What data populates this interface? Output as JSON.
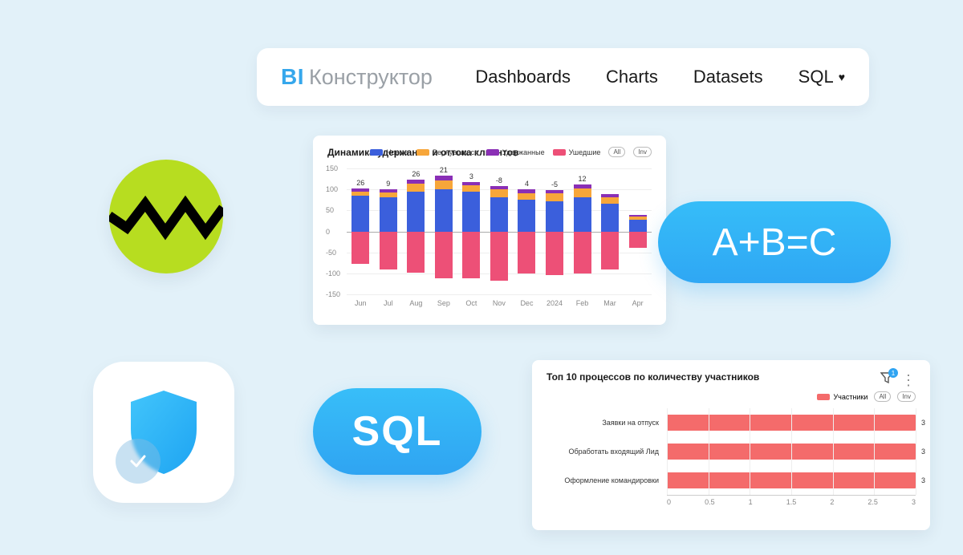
{
  "palette": {
    "bg": "#e2f1f9",
    "accent": "#36a7ec",
    "pill_gradient_top": "#38bef8",
    "pill_gradient_bottom": "#2fa4f2",
    "lime": "#b7dd20",
    "series_blue": "#3b5fdc",
    "series_orange": "#f7a63a",
    "series_purple": "#8a2fb5",
    "series_pink": "#ed5077",
    "bar_red": "#f46b6b",
    "grid": "#eeeeee",
    "text": "#1a1a1a",
    "muted": "#9aa0a6"
  },
  "navbar": {
    "logo_bi": "BI",
    "logo_text": "Конструктор",
    "links": [
      "Dashboards",
      "Charts",
      "Datasets"
    ],
    "sql_label": "SQL"
  },
  "formula_pill": "A+B=C",
  "sql_pill": "SQL",
  "retention": {
    "title": "Динамика удержания и оттока клиентов",
    "legend": [
      {
        "label": "Новые",
        "color": "#3b5fdc"
      },
      {
        "label": "Вернувшиеся",
        "color": "#f7a63a"
      },
      {
        "label": "Удержанные",
        "color": "#8a2fb5"
      },
      {
        "label": "Ушедшие",
        "color": "#ed5077"
      }
    ],
    "pill_buttons": [
      "All",
      "Inv"
    ],
    "ylim": [
      -150,
      150
    ],
    "yticks": [
      -150,
      -100,
      -50,
      0,
      50,
      100,
      150
    ],
    "months": [
      "Jun",
      "Jul",
      "Aug",
      "Sep",
      "Oct",
      "Nov",
      "Dec",
      "2024",
      "Feb",
      "Mar",
      "Apr"
    ],
    "value_labels": [
      26,
      9,
      26,
      21,
      3,
      -8,
      4,
      -5,
      12,
      null,
      null
    ],
    "pos_stack": [
      {
        "blue": 85,
        "orange": 10,
        "purple": 8
      },
      {
        "blue": 82,
        "orange": 10,
        "purple": 8
      },
      {
        "blue": 95,
        "orange": 18,
        "purple": 10
      },
      {
        "blue": 100,
        "orange": 22,
        "purple": 10
      },
      {
        "blue": 95,
        "orange": 14,
        "purple": 8
      },
      {
        "blue": 82,
        "orange": 18,
        "purple": 8
      },
      {
        "blue": 75,
        "orange": 16,
        "purple": 10
      },
      {
        "blue": 72,
        "orange": 18,
        "purple": 8
      },
      {
        "blue": 82,
        "orange": 20,
        "purple": 10
      },
      {
        "blue": 65,
        "orange": 16,
        "purple": 8
      },
      {
        "blue": 28,
        "orange": 8,
        "purple": 4
      }
    ],
    "neg_stack": [
      78,
      90,
      98,
      112,
      112,
      118,
      100,
      105,
      100,
      90,
      40
    ]
  },
  "top10": {
    "title": "Топ 10 процессов по количеству участников",
    "filter_count": "1",
    "legend_label": "Участники",
    "pill_buttons": [
      "All",
      "Inv"
    ],
    "xlim": [
      0,
      3
    ],
    "xticks": [
      0,
      0.5,
      1,
      1.5,
      2,
      2.5,
      3
    ],
    "rows": [
      {
        "label": "Заявки на отпуск",
        "value": 3
      },
      {
        "label": "Обработать входящий Лид",
        "value": 3
      },
      {
        "label": "Оформление командировки",
        "value": 3
      }
    ],
    "bar_color": "#f46b6b"
  }
}
